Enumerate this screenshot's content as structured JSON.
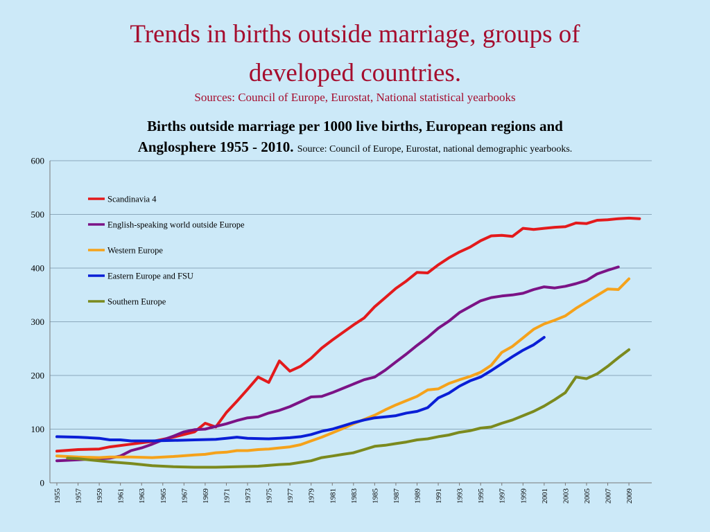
{
  "slide": {
    "title_line1": "Trends in births outside marriage, groups of",
    "title_line2": "developed countries.",
    "sources": "Sources: Council of Europe, Eurostat, National statistical yearbooks"
  },
  "chart_data": {
    "type": "line",
    "title_line1": "Births outside marriage per 1000 live births, European regions and",
    "title_line2": "Anglosphere 1955 - 2010.",
    "title_source": "Source: Council of Europe, Eurostat, national demographic yearbooks.",
    "xlabel": "",
    "ylabel": "",
    "xlim": [
      1955,
      2010
    ],
    "ylim": [
      0,
      600
    ],
    "yticks": [
      0,
      100,
      200,
      300,
      400,
      500,
      600
    ],
    "xticks": [
      1955,
      1957,
      1959,
      1961,
      1963,
      1965,
      1967,
      1969,
      1971,
      1973,
      1975,
      1977,
      1979,
      1981,
      1983,
      1985,
      1987,
      1989,
      1991,
      1993,
      1995,
      1997,
      1999,
      2001,
      2003,
      2005,
      2007,
      2009
    ],
    "grid": "horizontal",
    "legend_position": "top-left",
    "series": [
      {
        "name": "Scandinavia 4",
        "color": "#e31a1c",
        "points": [
          [
            1955,
            59
          ],
          [
            1957,
            62
          ],
          [
            1959,
            63
          ],
          [
            1960,
            67
          ],
          [
            1962,
            72
          ],
          [
            1964,
            77
          ],
          [
            1966,
            85
          ],
          [
            1968,
            95
          ],
          [
            1969,
            111
          ],
          [
            1970,
            104
          ],
          [
            1971,
            131
          ],
          [
            1972,
            152
          ],
          [
            1973,
            174
          ],
          [
            1974,
            197
          ],
          [
            1975,
            187
          ],
          [
            1976,
            227
          ],
          [
            1977,
            208
          ],
          [
            1978,
            217
          ],
          [
            1979,
            232
          ],
          [
            1980,
            251
          ],
          [
            1981,
            266
          ],
          [
            1982,
            280
          ],
          [
            1983,
            294
          ],
          [
            1984,
            307
          ],
          [
            1985,
            328
          ],
          [
            1986,
            345
          ],
          [
            1987,
            362
          ],
          [
            1988,
            376
          ],
          [
            1989,
            392
          ],
          [
            1990,
            391
          ],
          [
            1991,
            406
          ],
          [
            1992,
            419
          ],
          [
            1993,
            430
          ],
          [
            1994,
            439
          ],
          [
            1995,
            451
          ],
          [
            1996,
            460
          ],
          [
            1997,
            461
          ],
          [
            1998,
            459
          ],
          [
            1999,
            474
          ],
          [
            2000,
            472
          ],
          [
            2001,
            474
          ],
          [
            2002,
            476
          ],
          [
            2003,
            477
          ],
          [
            2004,
            484
          ],
          [
            2005,
            483
          ],
          [
            2006,
            489
          ],
          [
            2007,
            490
          ],
          [
            2008,
            492
          ],
          [
            2009,
            493
          ],
          [
            2010,
            492
          ]
        ]
      },
      {
        "name": "English-speaking world outside Europe",
        "color": "#7b1386",
        "points": [
          [
            1955,
            41
          ],
          [
            1957,
            43
          ],
          [
            1959,
            45
          ],
          [
            1960,
            46
          ],
          [
            1961,
            50
          ],
          [
            1962,
            60
          ],
          [
            1963,
            65
          ],
          [
            1964,
            72
          ],
          [
            1965,
            80
          ],
          [
            1966,
            87
          ],
          [
            1967,
            95
          ],
          [
            1968,
            99
          ],
          [
            1969,
            100
          ],
          [
            1970,
            105
          ],
          [
            1971,
            110
          ],
          [
            1972,
            116
          ],
          [
            1973,
            121
          ],
          [
            1974,
            123
          ],
          [
            1975,
            130
          ],
          [
            1976,
            135
          ],
          [
            1977,
            142
          ],
          [
            1978,
            151
          ],
          [
            1979,
            160
          ],
          [
            1980,
            161
          ],
          [
            1981,
            168
          ],
          [
            1982,
            176
          ],
          [
            1983,
            184
          ],
          [
            1984,
            192
          ],
          [
            1985,
            197
          ],
          [
            1986,
            210
          ],
          [
            1987,
            225
          ],
          [
            1988,
            240
          ],
          [
            1989,
            256
          ],
          [
            1990,
            271
          ],
          [
            1991,
            288
          ],
          [
            1992,
            301
          ],
          [
            1993,
            317
          ],
          [
            1994,
            328
          ],
          [
            1995,
            339
          ],
          [
            1996,
            345
          ],
          [
            1997,
            348
          ],
          [
            1998,
            350
          ],
          [
            1999,
            353
          ],
          [
            2000,
            360
          ],
          [
            2001,
            365
          ],
          [
            2002,
            363
          ],
          [
            2003,
            366
          ],
          [
            2004,
            371
          ],
          [
            2005,
            377
          ],
          [
            2006,
            389
          ],
          [
            2007,
            396
          ],
          [
            2008,
            402
          ]
        ]
      },
      {
        "name": "Western Europe",
        "color": "#f5a21b",
        "points": [
          [
            1955,
            50
          ],
          [
            1957,
            48
          ],
          [
            1959,
            47
          ],
          [
            1960,
            48
          ],
          [
            1962,
            48
          ],
          [
            1964,
            47
          ],
          [
            1966,
            49
          ],
          [
            1968,
            52
          ],
          [
            1969,
            53
          ],
          [
            1970,
            56
          ],
          [
            1971,
            57
          ],
          [
            1972,
            60
          ],
          [
            1973,
            60
          ],
          [
            1974,
            62
          ],
          [
            1975,
            63
          ],
          [
            1976,
            65
          ],
          [
            1977,
            67
          ],
          [
            1978,
            71
          ],
          [
            1979,
            78
          ],
          [
            1980,
            85
          ],
          [
            1981,
            93
          ],
          [
            1982,
            101
          ],
          [
            1983,
            110
          ],
          [
            1984,
            118
          ],
          [
            1985,
            126
          ],
          [
            1986,
            136
          ],
          [
            1987,
            145
          ],
          [
            1988,
            153
          ],
          [
            1989,
            161
          ],
          [
            1990,
            173
          ],
          [
            1991,
            175
          ],
          [
            1992,
            185
          ],
          [
            1993,
            192
          ],
          [
            1994,
            198
          ],
          [
            1995,
            206
          ],
          [
            1996,
            219
          ],
          [
            1997,
            243
          ],
          [
            1998,
            254
          ],
          [
            1999,
            270
          ],
          [
            2000,
            286
          ],
          [
            2001,
            296
          ],
          [
            2002,
            303
          ],
          [
            2003,
            311
          ],
          [
            2004,
            325
          ],
          [
            2005,
            337
          ],
          [
            2006,
            349
          ],
          [
            2007,
            361
          ],
          [
            2008,
            360
          ],
          [
            2009,
            380
          ]
        ]
      },
      {
        "name": "Eastern Europe and FSU",
        "color": "#0a1fd6",
        "points": [
          [
            1955,
            86
          ],
          [
            1957,
            85
          ],
          [
            1959,
            83
          ],
          [
            1960,
            80
          ],
          [
            1961,
            80
          ],
          [
            1962,
            78
          ],
          [
            1964,
            78
          ],
          [
            1966,
            79
          ],
          [
            1968,
            80
          ],
          [
            1970,
            81
          ],
          [
            1971,
            83
          ],
          [
            1972,
            85
          ],
          [
            1973,
            83
          ],
          [
            1975,
            82
          ],
          [
            1976,
            83
          ],
          [
            1977,
            84
          ],
          [
            1978,
            86
          ],
          [
            1979,
            90
          ],
          [
            1980,
            96
          ],
          [
            1981,
            100
          ],
          [
            1982,
            106
          ],
          [
            1983,
            112
          ],
          [
            1984,
            117
          ],
          [
            1985,
            121
          ],
          [
            1986,
            123
          ],
          [
            1987,
            125
          ],
          [
            1988,
            130
          ],
          [
            1989,
            133
          ],
          [
            1990,
            140
          ],
          [
            1991,
            158
          ],
          [
            1992,
            167
          ],
          [
            1993,
            180
          ],
          [
            1994,
            190
          ],
          [
            1995,
            197
          ],
          [
            1996,
            209
          ],
          [
            1997,
            222
          ],
          [
            1998,
            235
          ],
          [
            1999,
            247
          ],
          [
            2000,
            257
          ],
          [
            2001,
            271
          ]
        ]
      },
      {
        "name": "Southern Europe",
        "color": "#7b8a1e",
        "points": [
          [
            1956,
            46
          ],
          [
            1957,
            45
          ],
          [
            1958,
            43
          ],
          [
            1960,
            39
          ],
          [
            1962,
            36
          ],
          [
            1964,
            32
          ],
          [
            1966,
            30
          ],
          [
            1968,
            29
          ],
          [
            1970,
            29
          ],
          [
            1972,
            30
          ],
          [
            1974,
            31
          ],
          [
            1976,
            34
          ],
          [
            1977,
            35
          ],
          [
            1978,
            38
          ],
          [
            1979,
            41
          ],
          [
            1980,
            47
          ],
          [
            1981,
            50
          ],
          [
            1982,
            53
          ],
          [
            1983,
            56
          ],
          [
            1984,
            62
          ],
          [
            1985,
            68
          ],
          [
            1986,
            70
          ],
          [
            1987,
            73
          ],
          [
            1988,
            76
          ],
          [
            1989,
            80
          ],
          [
            1990,
            82
          ],
          [
            1991,
            86
          ],
          [
            1992,
            89
          ],
          [
            1993,
            94
          ],
          [
            1994,
            97
          ],
          [
            1995,
            102
          ],
          [
            1996,
            104
          ],
          [
            1997,
            111
          ],
          [
            1998,
            117
          ],
          [
            1999,
            125
          ],
          [
            2000,
            133
          ],
          [
            2001,
            143
          ],
          [
            2002,
            155
          ],
          [
            2003,
            168
          ],
          [
            2004,
            197
          ],
          [
            2005,
            194
          ],
          [
            2006,
            203
          ],
          [
            2007,
            217
          ],
          [
            2008,
            233
          ],
          [
            2009,
            248
          ]
        ]
      }
    ]
  }
}
